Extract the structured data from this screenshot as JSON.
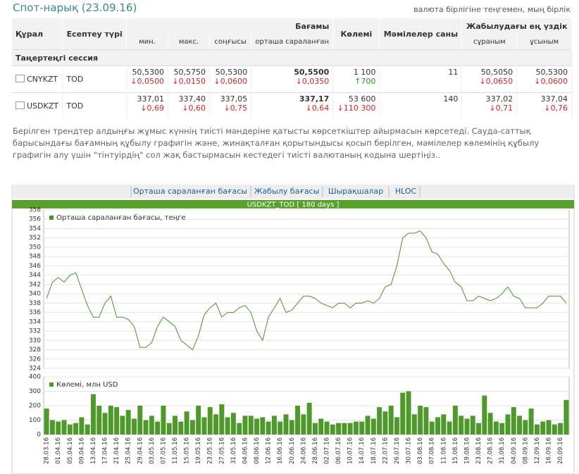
{
  "header": {
    "title": "Спот-нарық (23.09.16)",
    "note": "валюта бірлігіне теңгемен, мың бірлік"
  },
  "table": {
    "columns": {
      "instrument": "Құрал",
      "settlement": "Есептеу түрі",
      "prices": "Бағамы",
      "min": "мин.",
      "max": "макс.",
      "last": "соңғысы",
      "avg": "орташа сараланған",
      "volume": "Көлемі",
      "deals": "Мәмілелер саны",
      "best": "Жабылудағы ең үздік",
      "bid": "сұраным",
      "ask": "ұсыным"
    },
    "session": "Таңертеңгі сессия",
    "rows": [
      {
        "instrument": "CNYKZT",
        "settlement": "TOD",
        "min": {
          "value": "50,5300",
          "change": "0,0500",
          "dir": "down"
        },
        "max": {
          "value": "50,5750",
          "change": "0,0150",
          "dir": "down"
        },
        "last": {
          "value": "50,5300",
          "change": "0,0600",
          "dir": "down"
        },
        "avg": {
          "value": "50,5500",
          "change": "0,0350",
          "dir": "down"
        },
        "volume": {
          "value": "1 100",
          "change": "700",
          "dir": "up"
        },
        "deals": "11",
        "bid": {
          "value": "50,5050",
          "change": "0,0650",
          "dir": "down"
        },
        "ask": {
          "value": "50,5300",
          "change": "0,0600",
          "dir": "down"
        }
      },
      {
        "instrument": "USDKZT",
        "settlement": "TOD",
        "min": {
          "value": "337,01",
          "change": "0,69",
          "dir": "down"
        },
        "max": {
          "value": "337,40",
          "change": "0,60",
          "dir": "down"
        },
        "last": {
          "value": "337,05",
          "change": "0,75",
          "dir": "down"
        },
        "avg": {
          "value": "337,17",
          "change": "0,64",
          "dir": "down"
        },
        "volume": {
          "value": "53 600",
          "change": "110 300",
          "dir": "down"
        },
        "deals": "140",
        "bid": {
          "value": "337,02",
          "change": "0,71",
          "dir": "down"
        },
        "ask": {
          "value": "337,04",
          "change": "0,76",
          "dir": "down"
        }
      }
    ]
  },
  "description": "Берілген трендтер алдыңғы жұмыс күннің тиісті мәндеріне қатысты көрсеткіштер айырмасын көрсетеді. Сауда-саттық барысындағы бағамның құбылу графигін және, жинақталған қорытындысы қосып берілген, мәмілелер көлемінің құбылу графигін алу үшін \"тінтуірдің\" сол жақ бастырмасын кестедегі тиісті валютаның кодына шертіңіз..",
  "tabs": [
    "Орташа сараланған бағасы",
    "Жабылу бағасы",
    "Шырақшалар",
    "HLOC"
  ],
  "chart_title": "USDKZT_TOD [ 180 days ]",
  "chart_data": [
    {
      "type": "line",
      "series": [
        {
          "name": "Орташа сараланған бағасы, теңге",
          "color": "#4d8f2a",
          "values": [
            339,
            342.5,
            343.5,
            342.5,
            344,
            344.5,
            341,
            337.5,
            335,
            335,
            338,
            339.5,
            335,
            335,
            334.5,
            333,
            328.5,
            328.5,
            329.5,
            333,
            335,
            334,
            333,
            330,
            329,
            328,
            331,
            335.5,
            337,
            338,
            335,
            336,
            336,
            337,
            337.5,
            336,
            332,
            330,
            335,
            337,
            339,
            336,
            336.5,
            338,
            339.5,
            339.5,
            339,
            338,
            337.5,
            337,
            338,
            338,
            337,
            338,
            338,
            338.5,
            338,
            339,
            341.5,
            342,
            346,
            352,
            353,
            353,
            353.5,
            352,
            349,
            348.5,
            346.5,
            345,
            342.5,
            341.5,
            338.5,
            338.5,
            339.5,
            339,
            338.5,
            339,
            340,
            341.5,
            339.5,
            339,
            337,
            337,
            337,
            338,
            339.5,
            339.5,
            339.5,
            338
          ]
        }
      ],
      "ylim": [
        324,
        358
      ],
      "yticks": [
        324,
        326,
        328,
        330,
        332,
        334,
        336,
        338,
        340,
        342,
        344,
        346,
        348,
        350,
        352,
        354,
        356,
        358
      ],
      "grid": true
    },
    {
      "type": "bar",
      "series": [
        {
          "name": "Көлемі, млн USD",
          "color": "#4d9a2a",
          "values": [
            180,
            100,
            90,
            100,
            70,
            80,
            120,
            70,
            280,
            200,
            150,
            200,
            190,
            130,
            170,
            110,
            200,
            100,
            130,
            90,
            200,
            80,
            130,
            90,
            160,
            100,
            200,
            120,
            190,
            140,
            210,
            120,
            150,
            80,
            130,
            130,
            110,
            120,
            90,
            130,
            90,
            140,
            100,
            200,
            140,
            220,
            80,
            110,
            90,
            70,
            80,
            80,
            80,
            90,
            90,
            130,
            110,
            190,
            160,
            200,
            120,
            290,
            300,
            140,
            200,
            190,
            90,
            120,
            140,
            90,
            200,
            130,
            110,
            130,
            80,
            270,
            150,
            90,
            80,
            140,
            190,
            130,
            100,
            180,
            70,
            90,
            100,
            70,
            80,
            240
          ]
        }
      ],
      "ylim": [
        0,
        400
      ],
      "yticks": [
        0,
        100,
        200,
        300,
        400
      ],
      "grid": true,
      "categories": [
        "28.03.16",
        null,
        "01.04.16",
        null,
        "05.04.16",
        null,
        "09.04.16",
        null,
        "13.04.16",
        null,
        "17.04.16",
        null,
        "21.04.16",
        null,
        "25.04.16",
        null,
        "29.04.16",
        null,
        "03.05.16",
        null,
        "07.05.16",
        null,
        "11.05.16",
        null,
        "15.05.16",
        null,
        "19.05.16",
        null,
        "23.05.16",
        null,
        "27.05.16",
        null,
        "31.05.16",
        null,
        "04.06.16",
        null,
        "08.06.16",
        null,
        "12.06.16",
        null,
        "16.06.16",
        null,
        "20.06.16",
        null,
        "24.06.16",
        null,
        "28.06.16",
        null,
        "02.07.16",
        null,
        "06.07.16",
        null,
        "10.07.16",
        null,
        "14.07.16",
        null,
        "18.07.16",
        null,
        "22.07.16",
        null,
        "26.07.16",
        null,
        "30.07.16",
        null,
        "03.08.16",
        null,
        "07.08.16",
        null,
        "11.08.16",
        null,
        "15.08.16",
        null,
        "19.08.16",
        null,
        "23.08.16",
        null,
        "27.08.16",
        null,
        "31.08.16",
        null,
        "04.09.16",
        null,
        "08.09.16",
        null,
        "12.09.16",
        null,
        "16.09.16",
        null,
        "20.09.16",
        null
      ]
    }
  ]
}
